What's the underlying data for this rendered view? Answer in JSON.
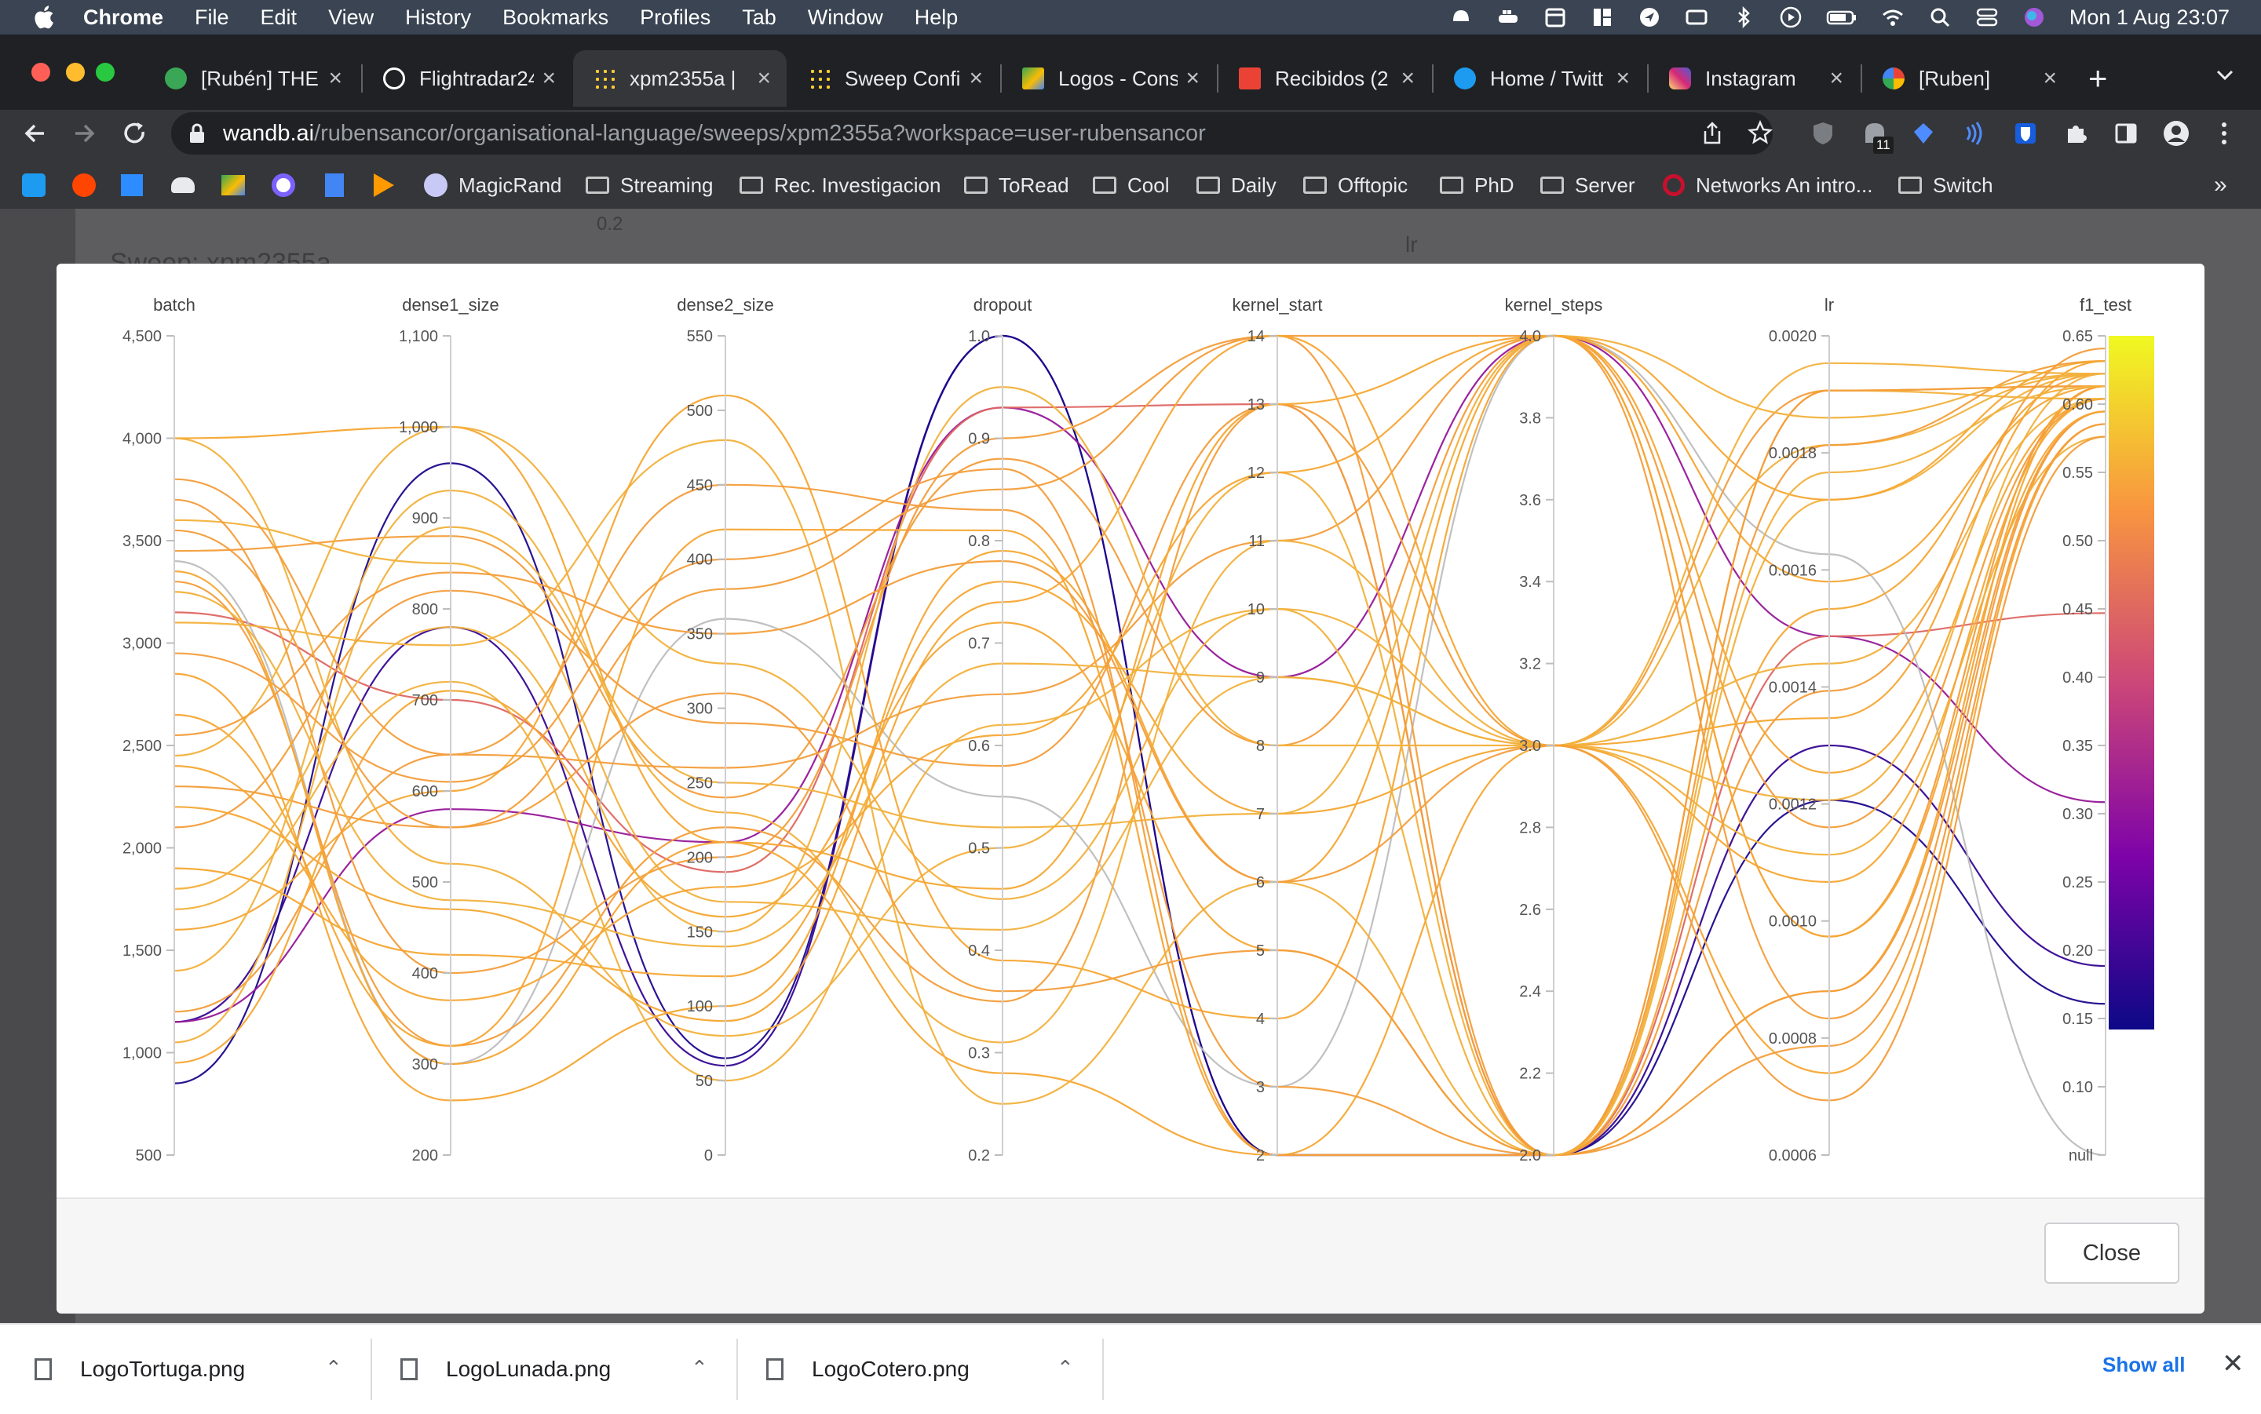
{
  "menubar": {
    "app": "Chrome",
    "items": [
      "File",
      "Edit",
      "View",
      "History",
      "Bookmarks",
      "Profiles",
      "Tab",
      "Window",
      "Help"
    ],
    "clock": "Mon 1 Aug  23:07"
  },
  "tabs": [
    {
      "title": "[Rubén] THE",
      "color": "#3aa757"
    },
    {
      "title": "Flightradar24",
      "color": "#ffffff"
    },
    {
      "title": "xpm2355a | ",
      "color": "#ffcc33",
      "active": true
    },
    {
      "title": "Sweep Confi",
      "color": "#ffcc33"
    },
    {
      "title": "Logos - Cons",
      "color": "#34a853"
    },
    {
      "title": "Recibidos (2",
      "color": "#ea4335"
    },
    {
      "title": "Home / Twitt",
      "color": "#1d9bf0"
    },
    {
      "title": "Instagram",
      "color": "#e1306c"
    },
    {
      "title": "[Ruben]",
      "color": "#4285f4"
    }
  ],
  "address": {
    "domain": "wandb.ai",
    "path": "/rubensancor/organisational-language/sweeps/xpm2355a?workspace=user-rubensancor"
  },
  "extension_badge": "11",
  "bookmarks": [
    {
      "label": "MagicRand",
      "kind": "site"
    },
    {
      "label": "Streaming",
      "kind": "folder"
    },
    {
      "label": "Rec. Investigacion",
      "kind": "folder"
    },
    {
      "label": "ToRead",
      "kind": "folder"
    },
    {
      "label": "Cool",
      "kind": "folder"
    },
    {
      "label": "Daily",
      "kind": "folder"
    },
    {
      "label": "Offtopic",
      "kind": "folder"
    },
    {
      "label": "PhD",
      "kind": "folder"
    },
    {
      "label": "Server",
      "kind": "folder"
    },
    {
      "label": "Networks An intro...",
      "kind": "site"
    },
    {
      "label": "Switch",
      "kind": "folder"
    }
  ],
  "background": {
    "sweep_title": "Sweep: xpm2355a",
    "tick": "0.2",
    "axis_label": "lr"
  },
  "chart_data": {
    "type": "parallel_coordinates",
    "axes": [
      {
        "name": "batch",
        "range": [
          500,
          4500
        ],
        "ticks": [
          "4,500",
          "4,000",
          "3,500",
          "3,000",
          "2,500",
          "2,000",
          "1,500",
          "1,000",
          "500"
        ]
      },
      {
        "name": "dense1_size",
        "range": [
          200,
          1100
        ],
        "ticks": [
          "1,100",
          "1,000",
          "900",
          "800",
          "700",
          "600",
          "500",
          "400",
          "300",
          "200"
        ]
      },
      {
        "name": "dense2_size",
        "range": [
          0,
          550
        ],
        "ticks": [
          "550",
          "500",
          "450",
          "400",
          "350",
          "300",
          "250",
          "200",
          "150",
          "100",
          "50",
          "0"
        ]
      },
      {
        "name": "dropout",
        "range": [
          0.2,
          1.0
        ],
        "ticks": [
          "1.0",
          "0.9",
          "0.8",
          "0.7",
          "0.6",
          "0.5",
          "0.4",
          "0.3",
          "0.2"
        ]
      },
      {
        "name": "kernel_start",
        "range": [
          2,
          14
        ],
        "ticks": [
          "14",
          "13",
          "12",
          "11",
          "10",
          "9",
          "8",
          "7",
          "6",
          "5",
          "4",
          "3",
          "2"
        ]
      },
      {
        "name": "kernel_steps",
        "range": [
          2.0,
          4.0
        ],
        "ticks": [
          "4.0",
          "3.8",
          "3.6",
          "3.4",
          "3.2",
          "3.0",
          "2.8",
          "2.6",
          "2.4",
          "2.2",
          "2.0"
        ]
      },
      {
        "name": "lr",
        "range": [
          0.0005,
          0.002
        ],
        "ticks": [
          "0.0020",
          "0.0018",
          "0.0016",
          "0.0014",
          "0.0012",
          "0.0010",
          "0.0008",
          "0.0006"
        ]
      },
      {
        "name": "f1_test",
        "range": [
          0.0,
          0.65
        ],
        "ticks": [
          "0.65",
          "0.60",
          "0.55",
          "0.50",
          "0.45",
          "0.40",
          "0.35",
          "0.30",
          "0.25",
          "0.20",
          "0.15",
          "0.10",
          "null"
        ]
      }
    ],
    "colorbar": {
      "min": 0.1,
      "max": 0.65,
      "ticks": [
        "0.65",
        "0.60",
        "0.55",
        "0.50",
        "0.45",
        "0.40",
        "0.35",
        "0.30",
        "0.25",
        "0.20",
        "0.15",
        "0.10"
      ]
    },
    "runs": [
      [
        1150,
        780,
        60,
        1.0,
        2,
        2.0,
        0.00125,
        0.15
      ],
      [
        850,
        960,
        65,
        1.0,
        2,
        2.0,
        0.00115,
        0.12
      ],
      [
        1150,
        580,
        210,
        0.93,
        9,
        4.0,
        0.00145,
        0.28
      ],
      [
        3150,
        700,
        190,
        0.93,
        13,
        2.0,
        0.00145,
        0.43
      ],
      [
        3400,
        300,
        360,
        0.55,
        3,
        4.0,
        0.0016,
        0.0
      ],
      [
        3300,
        320,
        220,
        0.35,
        13,
        3.0,
        0.0019,
        0.61
      ],
      [
        4000,
        1000,
        210,
        0.28,
        2,
        2.0,
        0.0008,
        0.61
      ],
      [
        3600,
        850,
        170,
        0.42,
        9,
        3.0,
        0.0018,
        0.62
      ],
      [
        2300,
        560,
        380,
        0.85,
        14,
        4.0,
        0.0011,
        0.6
      ],
      [
        1900,
        420,
        120,
        0.76,
        7,
        3.0,
        0.00065,
        0.58
      ],
      [
        3100,
        760,
        480,
        0.25,
        6,
        2.0,
        0.0017,
        0.62
      ],
      [
        1200,
        640,
        260,
        0.65,
        11,
        4.0,
        0.00075,
        0.59
      ],
      [
        2650,
        320,
        420,
        0.81,
        2,
        3.0,
        0.0013,
        0.63
      ],
      [
        4000,
        520,
        80,
        0.5,
        12,
        2.0,
        0.0019,
        0.6
      ],
      [
        3450,
        880,
        240,
        0.88,
        8,
        4.0,
        0.0009,
        0.61
      ],
      [
        950,
        710,
        160,
        0.72,
        5,
        2.0,
        0.0015,
        0.62
      ],
      [
        2450,
        1000,
        330,
        0.45,
        10,
        3.0,
        0.00105,
        0.57
      ],
      [
        3700,
        400,
        200,
        0.9,
        14,
        2.0,
        0.0018,
        0.63
      ],
      [
        1600,
        600,
        510,
        0.39,
        4,
        4.0,
        0.0012,
        0.6
      ],
      [
        3250,
        480,
        140,
        0.68,
        9,
        3.0,
        0.00195,
        0.62
      ],
      [
        2100,
        820,
        290,
        0.58,
        13,
        2.0,
        0.0008,
        0.59
      ],
      [
        2850,
        260,
        100,
        0.79,
        6,
        4.0,
        0.00155,
        0.61
      ],
      [
        1400,
        930,
        230,
        0.31,
        11,
        3.0,
        0.0014,
        0.6
      ],
      [
        3800,
        640,
        450,
        0.83,
        3,
        2.0,
        0.0007,
        0.58
      ],
      [
        2400,
        370,
        180,
        0.61,
        12,
        4.0,
        0.0017,
        0.63
      ],
      [
        1800,
        780,
        150,
        0.95,
        8,
        3.0,
        0.00115,
        0.62
      ],
      [
        3550,
        560,
        310,
        0.36,
        5,
        2.0,
        0.0019,
        0.61
      ],
      [
        2200,
        470,
        90,
        0.74,
        14,
        3.0,
        0.001,
        0.6
      ],
      [
        1050,
        890,
        250,
        0.52,
        7,
        4.0,
        0.00185,
        0.62
      ],
      [
        2950,
        610,
        400,
        0.87,
        2,
        2.0,
        0.00135,
        0.64
      ],
      [
        3350,
        300,
        210,
        0.46,
        13,
        4.0,
        0.0009,
        0.59
      ],
      [
        1700,
        720,
        50,
        0.62,
        10,
        2.0,
        0.00175,
        0.61
      ],
      [
        2550,
        840,
        350,
        0.78,
        6,
        3.0,
        0.0006,
        0.57
      ]
    ]
  },
  "footer": {
    "close_label": "Close"
  },
  "downloads": [
    "LogoTortuga.png",
    "LogoLunada.png",
    "LogoCotero.png"
  ],
  "show_all": "Show all"
}
